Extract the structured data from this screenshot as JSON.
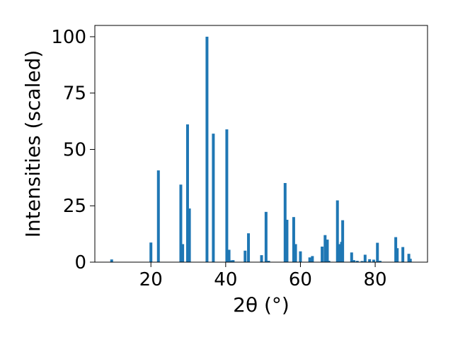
{
  "chart_data": {
    "type": "bar",
    "title": "",
    "xlabel": "2θ (°)",
    "ylabel": "Intensities (scaled)",
    "xlim": [
      5,
      94
    ],
    "ylim": [
      0,
      105
    ],
    "xticks": [
      20,
      40,
      60,
      80
    ],
    "yticks": [
      0,
      25,
      50,
      75,
      100
    ],
    "grid": false,
    "legend": "none",
    "bar_color": "#1f77b4",
    "x": [
      9.5,
      20.0,
      22.0,
      28.0,
      28.5,
      29.8,
      30.3,
      35.0,
      36.7,
      40.3,
      40.9,
      41.6,
      42.0,
      45.2,
      46.1,
      49.6,
      50.8,
      51.5,
      55.9,
      56.4,
      58.2,
      58.7,
      60.0,
      62.5,
      63.2,
      65.8,
      66.6,
      67.2,
      67.6,
      69.9,
      70.6,
      71.0,
      71.3,
      73.7,
      74.3,
      75.2,
      76.5,
      77.3,
      78.5,
      79.6,
      80.6,
      81.3,
      85.5,
      85.9,
      87.4,
      89.0,
      89.4
    ],
    "values": [
      1.2,
      8.7,
      40.7,
      34.4,
      8.0,
      61.1,
      23.8,
      100.0,
      57.0,
      58.9,
      5.5,
      0.8,
      0.9,
      5.1,
      12.8,
      3.1,
      22.3,
      0.6,
      35.1,
      18.8,
      20.0,
      8.0,
      4.8,
      2.1,
      2.7,
      6.9,
      12.0,
      10.0,
      0.6,
      27.4,
      8.0,
      9.0,
      18.6,
      4.3,
      0.9,
      0.6,
      0.5,
      3.3,
      1.3,
      1.1,
      8.6,
      0.6,
      11.1,
      6.2,
      6.7,
      3.7,
      1.5
    ]
  }
}
